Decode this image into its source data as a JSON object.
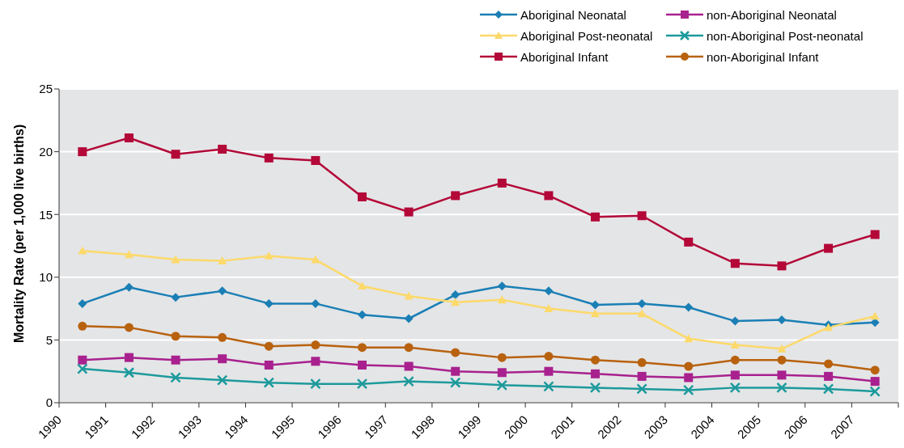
{
  "chart_data": {
    "type": "line",
    "ylabel": "Mortality Rate (per 1,000 live births)",
    "x": [
      1990.5,
      1991.5,
      1992.5,
      1993.5,
      1994.5,
      1995.5,
      1996.5,
      1997.5,
      1998.5,
      1999.5,
      2000.5,
      2001.5,
      2002.5,
      2003.5,
      2004.5,
      2005.5,
      2006.5,
      2007.5
    ],
    "xlim": [
      1990,
      2008
    ],
    "xticks": [
      1990,
      1991,
      1992,
      1993,
      1994,
      1995,
      1996,
      1997,
      1998,
      1999,
      2000,
      2001,
      2002,
      2003,
      2004,
      2005,
      2006,
      2007,
      {
        "value": 2008,
        "label": null
      }
    ],
    "ylim": [
      0,
      25
    ],
    "yticks": [
      0,
      5,
      10,
      15,
      20,
      25
    ],
    "grid": "y",
    "legend": "top right",
    "line_style": "solid",
    "series": [
      {
        "name": "Aboriginal Neonatal",
        "color": "#1a7fb5",
        "marker": "diamond",
        "values": [
          7.9,
          9.2,
          8.4,
          8.9,
          7.9,
          7.9,
          7.0,
          6.7,
          8.6,
          9.3,
          8.9,
          7.8,
          7.9,
          7.6,
          6.5,
          6.6,
          6.2,
          6.4
        ]
      },
      {
        "name": "non-Aboriginal Neonatal",
        "color": "#a8218e",
        "marker": "square",
        "values": [
          3.4,
          3.6,
          3.4,
          3.5,
          3.0,
          3.3,
          3.0,
          2.9,
          2.5,
          2.4,
          2.5,
          2.3,
          2.1,
          2.0,
          2.2,
          2.2,
          2.1,
          1.7
        ]
      },
      {
        "name": "Aboriginal Post-neonatal",
        "color": "#fcd96a",
        "marker": "triangle",
        "values": [
          12.1,
          11.8,
          11.4,
          11.3,
          11.7,
          11.4,
          9.3,
          8.5,
          8.0,
          8.2,
          7.5,
          7.1,
          7.1,
          5.1,
          4.6,
          4.3,
          6.0,
          6.9
        ]
      },
      {
        "name": "non-Aboriginal Post-neonatal",
        "color": "#1d9a9c",
        "marker": "cross",
        "values": [
          2.7,
          2.4,
          2.0,
          1.8,
          1.6,
          1.5,
          1.5,
          1.7,
          1.6,
          1.4,
          1.3,
          1.2,
          1.1,
          1.0,
          1.2,
          1.2,
          1.1,
          0.9
        ]
      },
      {
        "name": "Aboriginal Infant",
        "color": "#b30838",
        "marker": "square",
        "values": [
          20.0,
          21.1,
          19.8,
          20.2,
          19.5,
          19.3,
          16.4,
          15.2,
          16.5,
          17.5,
          16.5,
          14.8,
          14.9,
          12.8,
          11.1,
          10.9,
          12.3,
          13.4
        ]
      },
      {
        "name": "non-Aboriginal Infant",
        "color": "#b8620f",
        "marker": "circle",
        "values": [
          6.1,
          6.0,
          5.3,
          5.2,
          4.5,
          4.6,
          4.4,
          4.4,
          4.0,
          3.6,
          3.7,
          3.4,
          3.2,
          2.9,
          3.4,
          3.4,
          3.1,
          2.6
        ]
      }
    ]
  }
}
